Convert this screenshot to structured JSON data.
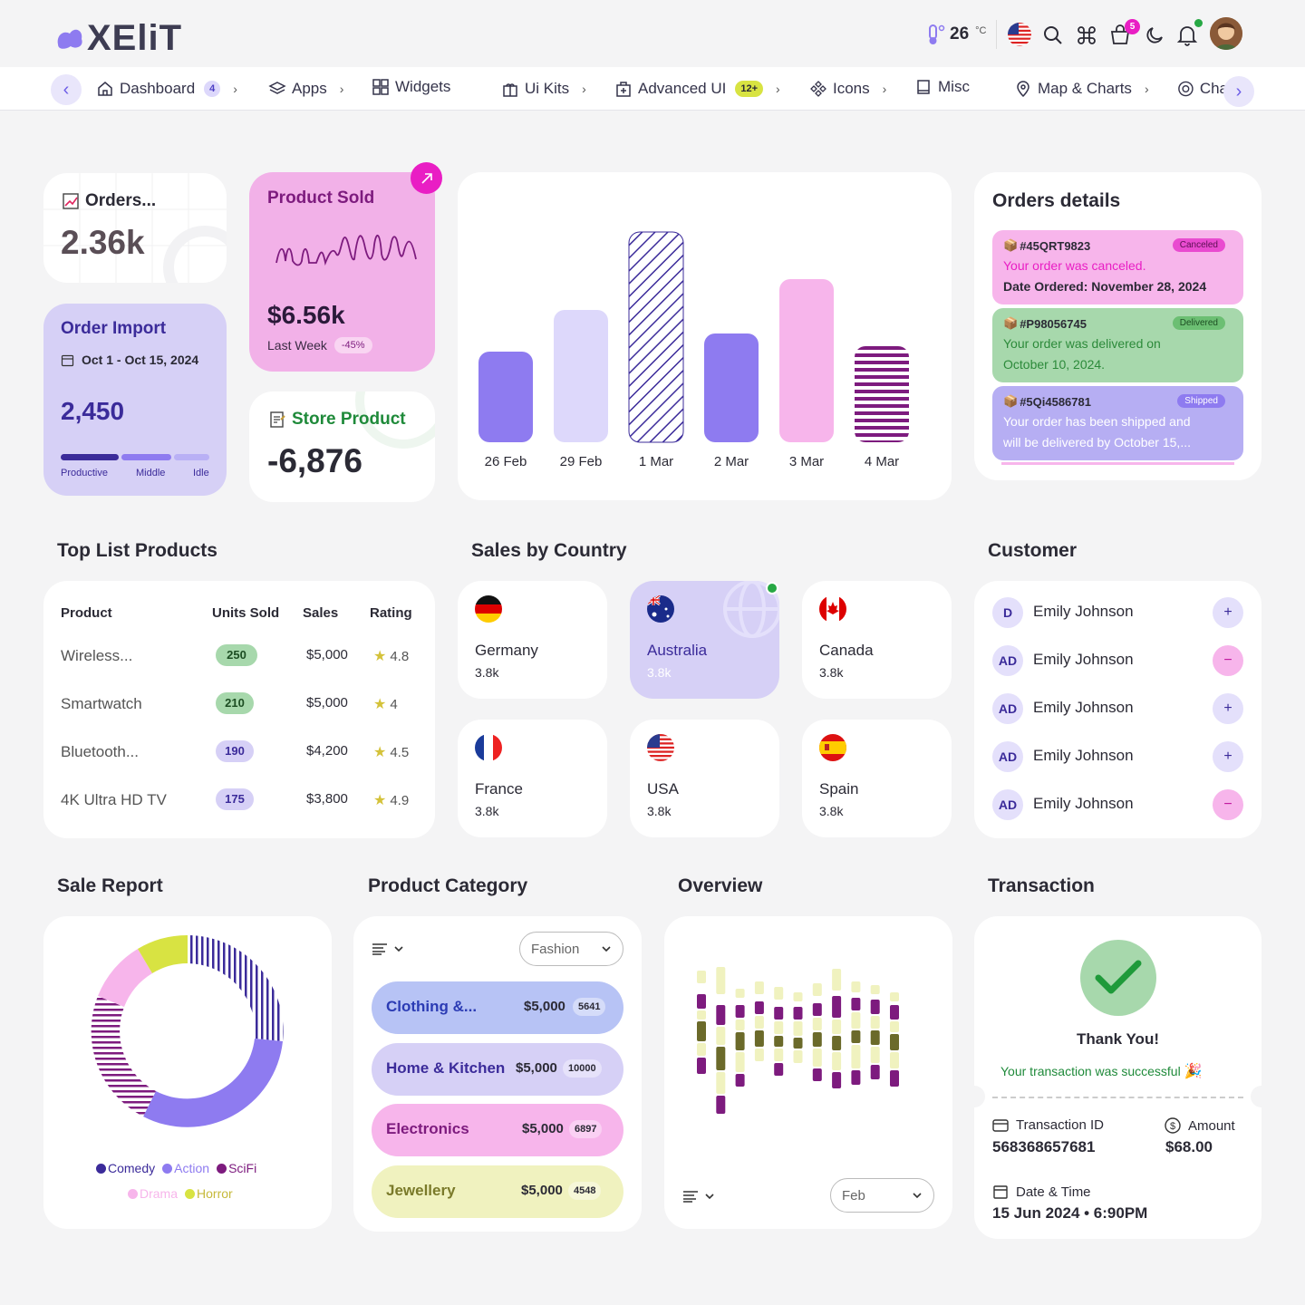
{
  "app": {
    "logo": "XEliT"
  },
  "header": {
    "temperature": "26",
    "temp_unit": "°C",
    "cart_count": "5"
  },
  "nav": {
    "items": [
      {
        "label": "Dashboard",
        "badge": "4"
      },
      {
        "label": "Apps"
      },
      {
        "label": "Widgets"
      },
      {
        "label": "Ui Kits"
      },
      {
        "label": "Advanced UI",
        "badge": "12+"
      },
      {
        "label": "Icons"
      },
      {
        "label": "Misc"
      },
      {
        "label": "Map & Charts"
      },
      {
        "label": "Cha"
      }
    ]
  },
  "orders": {
    "title": "Orders...",
    "value": "2.36k"
  },
  "product_sold": {
    "title": "Product Sold",
    "value": "$6.56k",
    "period": "Last Week",
    "change": "-45%"
  },
  "order_import": {
    "title": "Order Import",
    "date": "Oct 1 - Oct 15, 2024",
    "value": "2,450",
    "legend": [
      "Productive",
      "Middle",
      "Idle"
    ]
  },
  "store_product": {
    "title": "Store Product",
    "value": "-6,876"
  },
  "chart_data": {
    "type": "bar",
    "categories": [
      "26 Feb",
      "29 Feb",
      "1 Mar",
      "2 Mar",
      "3 Mar",
      "4 Mar"
    ],
    "values": [
      100,
      146,
      232,
      120,
      180,
      106
    ],
    "colors": [
      "#8e7bf0",
      "#ddd8fb",
      "#3b2b9a",
      "#8e7bf0",
      "#f7b5eb",
      "#7d1b7e"
    ]
  },
  "orders_details": {
    "title": "Orders details",
    "items": [
      {
        "id": "#45QRT9823",
        "status": "Canceled",
        "line1": "Your order was canceled.",
        "line2": "Date Ordered: November 28, 2024"
      },
      {
        "id": "#P98056745",
        "status": "Delivered",
        "line1": "Your order was delivered on",
        "line2": "October 10, 2024."
      },
      {
        "id": "#5Qi4586781",
        "status": "Shipped",
        "line1": "Your order has been shipped and",
        "line2": "will be delivered by October 15,..."
      }
    ]
  },
  "top_list": {
    "title": "Top List Products",
    "headers": [
      "Product",
      "Units Sold",
      "Sales",
      "Rating"
    ],
    "rows": [
      {
        "product": "Wireless...",
        "units": "250",
        "sales": "$5,000",
        "rating": "4.8"
      },
      {
        "product": "Smartwatch",
        "units": "210",
        "sales": "$5,000",
        "rating": "4"
      },
      {
        "product": "Bluetooth...",
        "units": "190",
        "sales": "$4,200",
        "rating": "4.5"
      },
      {
        "product": "4K Ultra HD TV",
        "units": "175",
        "sales": "$3,800",
        "rating": "4.9"
      }
    ]
  },
  "sales_country": {
    "title": "Sales by Country",
    "items": [
      {
        "name": "Germany",
        "value": "3.8k"
      },
      {
        "name": "Australia",
        "value": "3.8k"
      },
      {
        "name": "Canada",
        "value": "3.8k"
      },
      {
        "name": "France",
        "value": "3.8k"
      },
      {
        "name": "USA",
        "value": "3.8k"
      },
      {
        "name": "Spain",
        "value": "3.8k"
      }
    ]
  },
  "customer": {
    "title": "Customer",
    "items": [
      {
        "initials": "D",
        "name": "Emily Johnson",
        "action": "+"
      },
      {
        "initials": "AD",
        "name": "Emily Johnson",
        "action": "−"
      },
      {
        "initials": "AD",
        "name": "Emily Johnson",
        "action": "+"
      },
      {
        "initials": "AD",
        "name": "Emily Johnson",
        "action": "+"
      },
      {
        "initials": "AD",
        "name": "Emily Johnson",
        "action": "−"
      }
    ]
  },
  "sale_report": {
    "title": "Sale Report",
    "legend": [
      {
        "label": "Comedy",
        "color": "#3b2b9a"
      },
      {
        "label": "Action",
        "color": "#8e7bf0"
      },
      {
        "label": "SciFi",
        "color": "#7d1b7e"
      },
      {
        "label": "Drama",
        "color": "#f7b5eb"
      },
      {
        "label": "Horror",
        "color": "#cfd93a"
      }
    ]
  },
  "product_category": {
    "title": "Product Category",
    "select": "Fashion",
    "items": [
      {
        "label": "Clothing &...",
        "amount": "$5,000",
        "count": "5641"
      },
      {
        "label": "Home & Kitchen",
        "amount": "$5,000",
        "count": "10000"
      },
      {
        "label": "Electronics",
        "amount": "$5,000",
        "count": "6897"
      },
      {
        "label": "Jewellery",
        "amount": "$5,000",
        "count": "4548"
      }
    ]
  },
  "overview": {
    "title": "Overview",
    "select": "Feb"
  },
  "transaction": {
    "title": "Transaction",
    "thanks": "Thank You!",
    "message": "Your transaction was successful",
    "id_label": "Transaction ID",
    "id_value": "568368657681",
    "amount_label": "Amount",
    "amount_value": "$68.00",
    "date_label": "Date & Time",
    "date_value": "15 Jun 2024 • 6:90PM"
  }
}
